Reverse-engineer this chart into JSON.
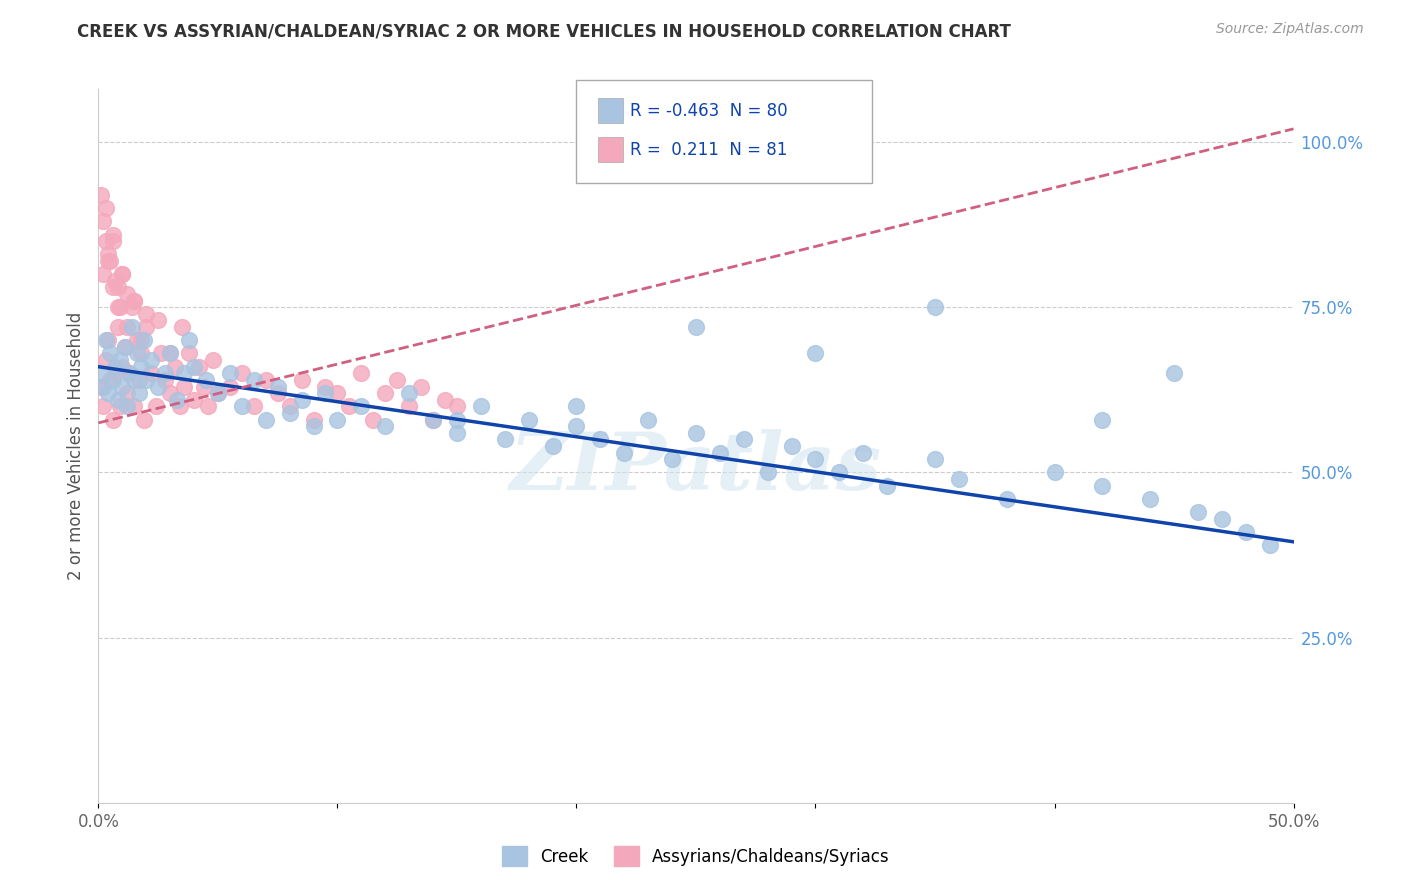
{
  "title": "CREEK VS ASSYRIAN/CHALDEAN/SYRIAC 2 OR MORE VEHICLES IN HOUSEHOLD CORRELATION CHART",
  "source_text": "Source: ZipAtlas.com",
  "ylabel": "2 or more Vehicles in Household",
  "x_min": 0.0,
  "x_max": 0.5,
  "y_min": 0.0,
  "y_max": 1.08,
  "y_ticks_right": [
    0.25,
    0.5,
    0.75,
    1.0
  ],
  "y_tick_labels_right": [
    "25.0%",
    "50.0%",
    "75.0%",
    "100.0%"
  ],
  "creek_color": "#a8c4e0",
  "creek_line_color": "#1044aa",
  "assyrian_color": "#f4a8bc",
  "assyrian_line_color": "#d06080",
  "creek_R": -0.463,
  "creek_N": 80,
  "assyrian_R": 0.211,
  "assyrian_N": 81,
  "creek_line_x0": 0.0,
  "creek_line_y0": 0.66,
  "creek_line_x1": 0.5,
  "creek_line_y1": 0.395,
  "assyrian_line_x0": 0.0,
  "assyrian_line_y0": 0.575,
  "assyrian_line_x1": 0.5,
  "assyrian_line_y1": 1.02,
  "creek_scatter_x": [
    0.001,
    0.002,
    0.003,
    0.004,
    0.005,
    0.006,
    0.007,
    0.008,
    0.009,
    0.01,
    0.011,
    0.012,
    0.013,
    0.014,
    0.015,
    0.016,
    0.017,
    0.018,
    0.019,
    0.02,
    0.022,
    0.025,
    0.028,
    0.03,
    0.033,
    0.036,
    0.038,
    0.04,
    0.045,
    0.05,
    0.055,
    0.06,
    0.065,
    0.07,
    0.075,
    0.08,
    0.085,
    0.09,
    0.095,
    0.1,
    0.11,
    0.12,
    0.13,
    0.14,
    0.15,
    0.16,
    0.17,
    0.18,
    0.19,
    0.2,
    0.21,
    0.22,
    0.23,
    0.24,
    0.25,
    0.26,
    0.27,
    0.28,
    0.29,
    0.3,
    0.31,
    0.32,
    0.33,
    0.35,
    0.36,
    0.38,
    0.4,
    0.42,
    0.44,
    0.45,
    0.46,
    0.47,
    0.48,
    0.49,
    0.42,
    0.35,
    0.3,
    0.25,
    0.2,
    0.15
  ],
  "creek_scatter_y": [
    0.65,
    0.63,
    0.7,
    0.62,
    0.68,
    0.64,
    0.66,
    0.61,
    0.67,
    0.63,
    0.69,
    0.6,
    0.65,
    0.72,
    0.64,
    0.68,
    0.62,
    0.66,
    0.7,
    0.64,
    0.67,
    0.63,
    0.65,
    0.68,
    0.61,
    0.65,
    0.7,
    0.66,
    0.64,
    0.62,
    0.65,
    0.6,
    0.64,
    0.58,
    0.63,
    0.59,
    0.61,
    0.57,
    0.62,
    0.58,
    0.6,
    0.57,
    0.62,
    0.58,
    0.56,
    0.6,
    0.55,
    0.58,
    0.54,
    0.57,
    0.55,
    0.53,
    0.58,
    0.52,
    0.56,
    0.53,
    0.55,
    0.5,
    0.54,
    0.52,
    0.5,
    0.53,
    0.48,
    0.52,
    0.49,
    0.46,
    0.5,
    0.48,
    0.46,
    0.65,
    0.44,
    0.43,
    0.41,
    0.39,
    0.58,
    0.75,
    0.68,
    0.72,
    0.6,
    0.58
  ],
  "assyrian_scatter_x": [
    0.001,
    0.002,
    0.003,
    0.004,
    0.005,
    0.006,
    0.007,
    0.008,
    0.009,
    0.01,
    0.011,
    0.012,
    0.013,
    0.014,
    0.015,
    0.016,
    0.017,
    0.018,
    0.019,
    0.02,
    0.022,
    0.024,
    0.026,
    0.028,
    0.03,
    0.032,
    0.034,
    0.036,
    0.038,
    0.04,
    0.042,
    0.044,
    0.046,
    0.048,
    0.05,
    0.055,
    0.06,
    0.065,
    0.07,
    0.075,
    0.08,
    0.085,
    0.09,
    0.095,
    0.1,
    0.105,
    0.11,
    0.115,
    0.12,
    0.125,
    0.13,
    0.135,
    0.14,
    0.145,
    0.15,
    0.002,
    0.003,
    0.004,
    0.006,
    0.008,
    0.01,
    0.012,
    0.015,
    0.018,
    0.02,
    0.025,
    0.03,
    0.035,
    0.002,
    0.004,
    0.006,
    0.008,
    0.01,
    0.015,
    0.005,
    0.007,
    0.009,
    0.012,
    0.003,
    0.006,
    0.001
  ],
  "assyrian_scatter_y": [
    0.63,
    0.6,
    0.67,
    0.7,
    0.64,
    0.58,
    0.65,
    0.72,
    0.6,
    0.66,
    0.69,
    0.62,
    0.65,
    0.75,
    0.6,
    0.7,
    0.64,
    0.68,
    0.58,
    0.72,
    0.65,
    0.6,
    0.68,
    0.64,
    0.62,
    0.66,
    0.6,
    0.63,
    0.68,
    0.61,
    0.66,
    0.63,
    0.6,
    0.67,
    0.62,
    0.63,
    0.65,
    0.6,
    0.64,
    0.62,
    0.6,
    0.64,
    0.58,
    0.63,
    0.62,
    0.6,
    0.65,
    0.58,
    0.62,
    0.64,
    0.6,
    0.63,
    0.58,
    0.61,
    0.6,
    0.8,
    0.85,
    0.82,
    0.78,
    0.75,
    0.8,
    0.72,
    0.76,
    0.7,
    0.74,
    0.73,
    0.68,
    0.72,
    0.88,
    0.83,
    0.85,
    0.78,
    0.8,
    0.76,
    0.82,
    0.79,
    0.75,
    0.77,
    0.9,
    0.86,
    0.92
  ]
}
